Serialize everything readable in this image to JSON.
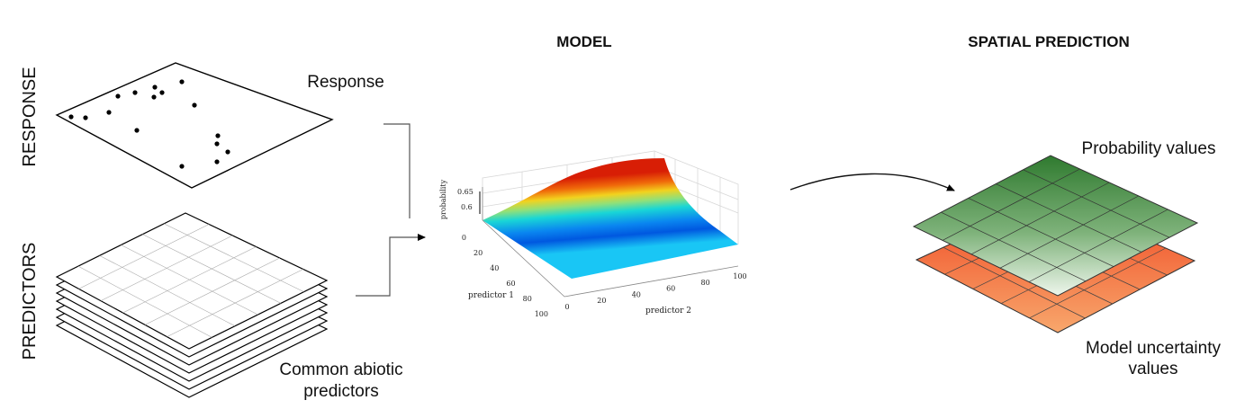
{
  "row_labels": {
    "response": "RESPONSE",
    "predictors": "PREDICTORS"
  },
  "section_titles": {
    "model": "MODEL",
    "spatial_prediction": "SPATIAL PREDICTION"
  },
  "layer_labels": {
    "response": "Response",
    "common_line1": "Common abiotic",
    "common_line2": "predictors",
    "probability": "Probability values",
    "uncertainty_line1": "Model uncertainty",
    "uncertainty_line2": "values"
  },
  "plot": {
    "z_label": "probability",
    "z_ticks": [
      "0.65",
      "0.6"
    ],
    "x_label": "predictor 1",
    "x_ticks": [
      "0",
      "20",
      "40",
      "60",
      "80",
      "100"
    ],
    "y_label": "predictor 2",
    "y_ticks": [
      "0",
      "20",
      "40",
      "60",
      "80",
      "100"
    ]
  },
  "colors": {
    "probability_layer_top": "#2f7a2f",
    "probability_layer_bottom": "#e8f2e6",
    "uncertainty_layer_top": "#f04a1f",
    "uncertainty_layer_bottom": "#f7a46a",
    "surface_low": "#0078ff",
    "surface_mid": "#00d9d9",
    "surface_high": "#d81e05"
  }
}
